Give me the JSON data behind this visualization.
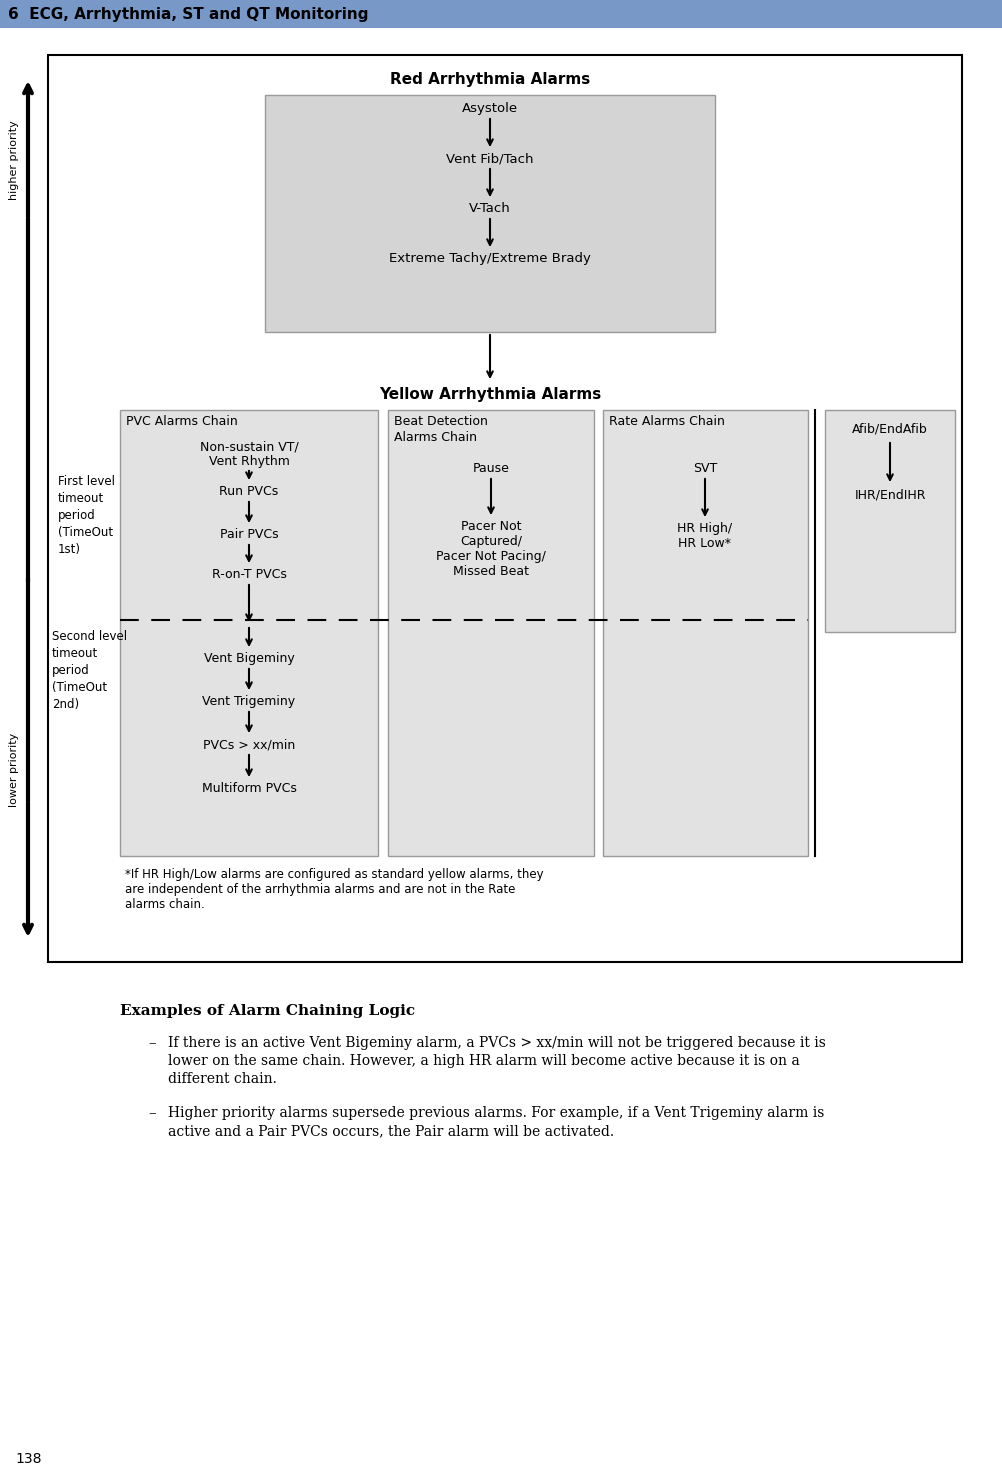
{
  "header_text": "6  ECG, Arrhythmia, ST and QT Monitoring",
  "header_bg": "#7898c8",
  "page_number": "138",
  "red_section_title": "Red Arrhythmia Alarms",
  "red_box_items": [
    "Asystole",
    "Vent Fib/Tach",
    "V-Tach",
    "Extreme Tachy/Extreme Brady"
  ],
  "red_box_bg": "#d4d4d4",
  "yellow_section_title": "Yellow Arrhythmia Alarms",
  "pvc_chain_title": "PVC Alarms Chain",
  "pvc_chain_upper": [
    "Non-sustain VT/\nVent Rhythm",
    "Run PVCs",
    "Pair PVCs",
    "R-on-T PVCs"
  ],
  "pvc_chain_lower": [
    "Vent Bigeminy",
    "Vent Trigeminy",
    "PVCs > xx/min",
    "Multiform PVCs"
  ],
  "beat_chain_title": "Beat Detection\nAlarms Chain",
  "beat_chain_items": [
    "Pause",
    "Pacer Not\nCaptured/\nPacer Not Pacing/\nMissed Beat"
  ],
  "rate_chain_title": "Rate Alarms Chain",
  "rate_chain_items": [
    "SVT",
    "HR High/\nHR Low*"
  ],
  "afib_items": [
    "Afib/EndAfib",
    "IHR/EndIHR"
  ],
  "timeout1": "First level\ntimeout\nperiod\n(TimeOut\n1st)",
  "timeout2": "Second level\ntimeout\nperiod\n(TimeOut\n2nd)",
  "footnote_lines": [
    "*If HR High/Low alarms are configured as standard yellow alarms, they",
    "are independent of the arrhythmia alarms and are not in the Rate",
    "alarms chain."
  ],
  "examples_title": "Examples of Alarm Chaining Logic",
  "bullet1_lines": [
    "If there is an active Vent Bigeminy alarm, a PVCs > xx/min will not be triggered because it is",
    "lower on the same chain. However, a high HR alarm will become active because it is on a",
    "different chain."
  ],
  "bullet2_lines": [
    "Higher priority alarms supersede previous alarms. For example, if a Vent Trigeminy alarm is",
    "active and a Pair PVCs occurs, the Pair alarm will be activated."
  ],
  "chain_box_bg": "#e2e2e2",
  "fig_w": 10.03,
  "fig_h": 14.76,
  "dpi": 100
}
